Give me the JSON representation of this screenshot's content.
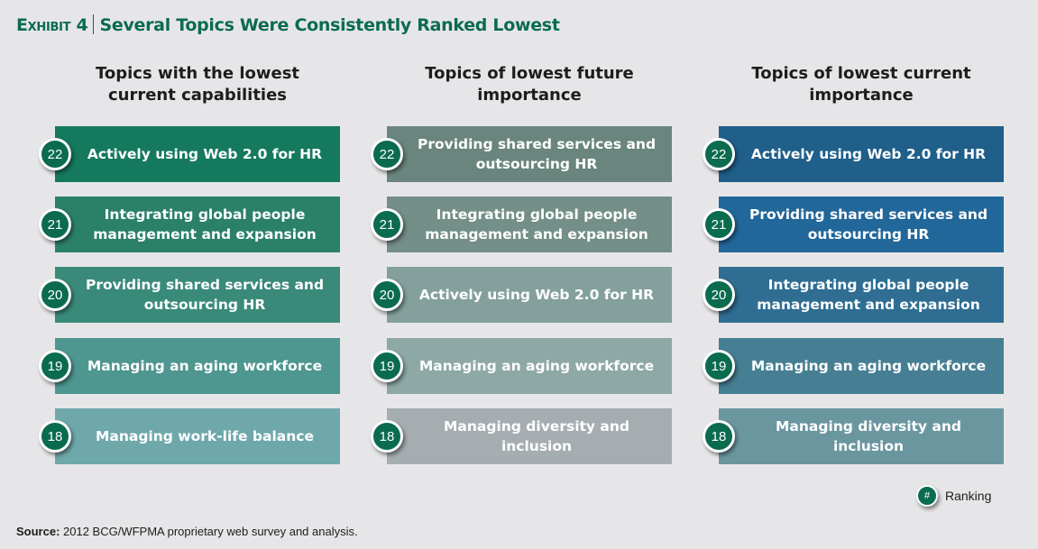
{
  "header": {
    "exhibit_label": "Exhibit 4",
    "title": "Several Topics Were Consistently Ranked Lowest"
  },
  "columns": [
    {
      "heading_line1": "Topics with the lowest",
      "heading_line2": "current capabilities",
      "items": [
        {
          "rank": "22",
          "label": "Actively using Web 2.0 for HR",
          "color": "#15795e"
        },
        {
          "rank": "21",
          "label": "Integrating global people management and expansion",
          "color": "#2b8068"
        },
        {
          "rank": "20",
          "label": "Providing shared services and outsourcing HR",
          "color": "#3a8a7a"
        },
        {
          "rank": "19",
          "label": "Managing an aging workforce",
          "color": "#4e9690"
        },
        {
          "rank": "18",
          "label": "Managing work-life balance",
          "color": "#6fa8ab"
        }
      ]
    },
    {
      "heading_line1": "Topics of lowest future",
      "heading_line2": "importance",
      "items": [
        {
          "rank": "22",
          "label": "Providing shared services and outsourcing HR",
          "color": "#6a857e"
        },
        {
          "rank": "21",
          "label": "Integrating global people management and expansion",
          "color": "#748e88"
        },
        {
          "rank": "20",
          "label": "Actively using Web 2.0 for HR",
          "color": "#84a09c"
        },
        {
          "rank": "19",
          "label": "Managing an aging workforce",
          "color": "#8ea8a6"
        },
        {
          "rank": "18",
          "label": "Managing diversity and inclusion",
          "color": "#a6adb1"
        }
      ]
    },
    {
      "heading_line1": "Topics of lowest current",
      "heading_line2": "importance",
      "items": [
        {
          "rank": "22",
          "label": "Actively using Web 2.0 for HR",
          "color": "#1f5f8a"
        },
        {
          "rank": "21",
          "label": "Providing shared services and outsourcing HR",
          "color": "#22679a"
        },
        {
          "rank": "20",
          "label": "Integrating global people management and expansion",
          "color": "#2f6e92"
        },
        {
          "rank": "19",
          "label": "Managing an aging workforce",
          "color": "#467f93"
        },
        {
          "rank": "18",
          "label": "Managing diversity and inclusion",
          "color": "#6a96a0"
        }
      ]
    }
  ],
  "legend": {
    "symbol": "#",
    "label": "Ranking"
  },
  "source": {
    "label": "Source:",
    "text": " 2012 BCG/WFPMA proprietary web survey and analysis."
  }
}
